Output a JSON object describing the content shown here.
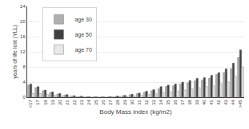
{
  "chart_data": {
    "type": "bar",
    "xlabel": "Body Mass index (kg/m2)",
    "ylabel": "years of life lost (YLL)",
    "categories": [
      "<17",
      "17",
      "18",
      "19",
      "20",
      "21",
      "22",
      "23",
      "24",
      "25",
      "26",
      "27",
      "28",
      "29",
      "30",
      "31",
      "32",
      "33",
      "34",
      "35",
      "36",
      "37",
      "38",
      "39",
      "40",
      "41",
      "42",
      "43",
      "44",
      ">45"
    ],
    "series": [
      {
        "name": "age 30",
        "color": "#b0b0b0",
        "values": [
          3.2,
          2.5,
          1.7,
          1.2,
          0.8,
          0.55,
          0.3,
          0.18,
          0.08,
          0.05,
          0.05,
          0.1,
          0.2,
          0.35,
          0.6,
          0.9,
          1.3,
          1.7,
          2.2,
          2.8,
          3.0,
          3.5,
          3.8,
          4.3,
          4.5,
          5.0,
          6.0,
          6.5,
          7.5,
          10.5
        ]
      },
      {
        "name": "age 50",
        "color": "#404040",
        "values": [
          3.5,
          2.8,
          1.9,
          1.4,
          1.0,
          0.7,
          0.4,
          0.25,
          0.12,
          0.07,
          0.07,
          0.12,
          0.3,
          0.5,
          0.8,
          1.1,
          1.6,
          2.0,
          2.8,
          3.2,
          3.5,
          4.0,
          4.4,
          5.0,
          5.2,
          5.8,
          6.5,
          7.5,
          9.0,
          12.5
        ]
      },
      {
        "name": "age 70",
        "color": "#e8e8e8",
        "values": [
          1.0,
          0.9,
          0.7,
          0.5,
          0.4,
          0.3,
          0.18,
          0.1,
          0.05,
          0.03,
          0.03,
          0.05,
          0.12,
          0.2,
          0.35,
          0.5,
          0.7,
          0.9,
          1.2,
          1.4,
          1.6,
          1.9,
          2.2,
          2.5,
          2.8,
          3.0,
          3.5,
          4.0,
          5.5,
          8.0
        ]
      }
    ],
    "ylim": [
      0,
      24
    ],
    "yticks": [
      0,
      4,
      8,
      12,
      16,
      20,
      24
    ],
    "grid": true,
    "legend": "upper left"
  }
}
